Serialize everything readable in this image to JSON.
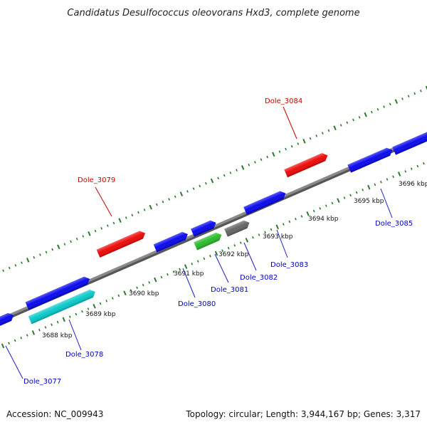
{
  "title": "Candidatus Desulfococcus oleovorans Hxd3, complete genome",
  "footer": {
    "accession": "Accession: NC_009943",
    "topology": "Topology: circular; Length: 3,944,167 bp; Genes: 3,317"
  },
  "colors": {
    "backbone": "#8a8a8a",
    "tick": "#2a7a2a",
    "forward_label": "#cc0000",
    "reverse_label": "#0000cc",
    "leader": "#1a1acc",
    "leader_top": "#cc0000"
  },
  "tick_labels": [
    "3688 kbp",
    "3689 kbp",
    "3690 kbp",
    "3691 kbp",
    "3692 kbp",
    "3693 kbp",
    "3694 kbp",
    "3695 kbp",
    "3696 kbp"
  ],
  "genes": [
    {
      "name": "Dole_3077",
      "strand": "reverse",
      "color": "#0000ee",
      "labeled": true
    },
    {
      "name": "Dole_3078",
      "strand": "reverse",
      "color": "#00c8c8",
      "labeled": true
    },
    {
      "name": "",
      "strand": "reverse",
      "color": "#0000ee",
      "labeled": false
    },
    {
      "name": "Dole_3079",
      "strand": "forward",
      "color": "#ee0000",
      "labeled": true
    },
    {
      "name": "Dole_3080",
      "strand": "reverse",
      "color": "#0000ee",
      "labeled": true
    },
    {
      "name": "Dole_3081",
      "strand": "reverse",
      "color": "#22bb22",
      "labeled": true
    },
    {
      "name": "",
      "strand": "reverse",
      "color": "#0000ee",
      "labeled": false
    },
    {
      "name": "Dole_3082",
      "strand": "reverse",
      "color": "#606060",
      "labeled": true
    },
    {
      "name": "Dole_3083",
      "strand": "reverse",
      "color": "#0000ee",
      "labeled": true
    },
    {
      "name": "Dole_3084",
      "strand": "forward",
      "color": "#ee0000",
      "labeled": true
    },
    {
      "name": "Dole_3085",
      "strand": "reverse",
      "color": "#0000ee",
      "labeled": true
    },
    {
      "name": "",
      "strand": "reverse",
      "color": "#0000ee",
      "labeled": false
    }
  ]
}
